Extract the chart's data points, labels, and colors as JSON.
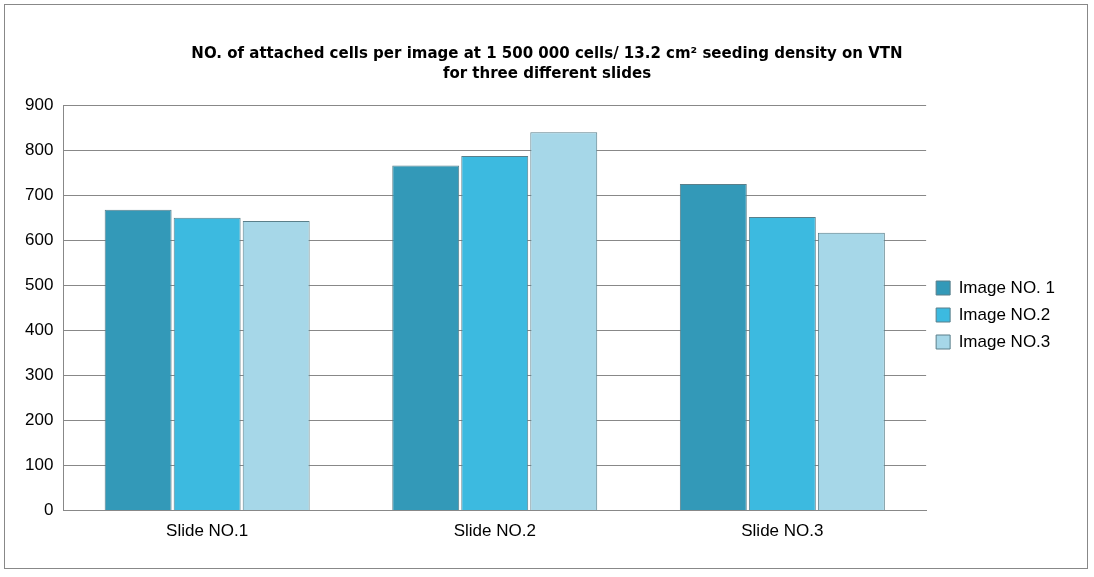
{
  "chart_data": {
    "type": "bar",
    "title": "NO. of attached cells per image at 1 500 000 cells/ 13.2 cm² seeding density on VTN\nfor three different slides",
    "categories": [
      "Slide NO.1",
      "Slide NO.2",
      "Slide NO.3"
    ],
    "series": [
      {
        "name": "Image NO. 1",
        "color": "#3399b8",
        "values": [
          668,
          766,
          725
        ]
      },
      {
        "name": "Image NO.2",
        "color": "#3cbae0",
        "values": [
          650,
          787,
          652
        ]
      },
      {
        "name": "Image NO.3",
        "color": "#a6d7e8",
        "values": [
          643,
          840,
          617
        ]
      }
    ],
    "ylim": [
      0,
      900
    ],
    "yticks": [
      0,
      100,
      200,
      300,
      400,
      500,
      600,
      700,
      800,
      900
    ],
    "grid": "y",
    "legend": "right"
  }
}
